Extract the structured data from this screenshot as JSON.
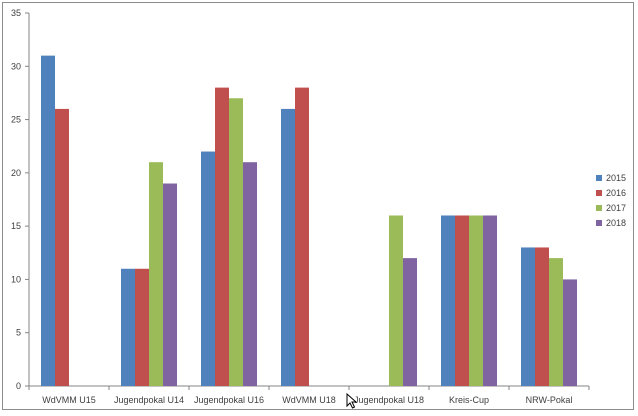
{
  "chart_data": {
    "type": "bar",
    "title": "",
    "xlabel": "",
    "ylabel": "",
    "ylim": [
      0,
      35
    ],
    "yticks": [
      0,
      5,
      10,
      15,
      20,
      25,
      30,
      35
    ],
    "grid": false,
    "legend_position": "right",
    "categories": [
      "WdVMM U15",
      "Jugendpokal U14",
      "Jugendpokal U16",
      "WdVMM U18",
      "Jugendpokal U18",
      "Kreis-Cup",
      "NRW-Pokal"
    ],
    "series": [
      {
        "name": "2015",
        "color": "#4f81bd",
        "values": [
          31,
          11,
          22,
          26,
          null,
          16,
          13
        ]
      },
      {
        "name": "2016",
        "color": "#c0504d",
        "values": [
          26,
          11,
          28,
          28,
          null,
          16,
          13
        ]
      },
      {
        "name": "2017",
        "color": "#9bbb59",
        "values": [
          null,
          21,
          27,
          null,
          16,
          16,
          12
        ]
      },
      {
        "name": "2018",
        "color": "#8064a2",
        "values": [
          null,
          19,
          21,
          null,
          12,
          16,
          10
        ]
      }
    ]
  }
}
